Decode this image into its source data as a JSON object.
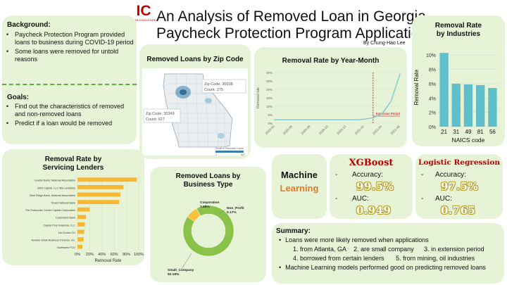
{
  "header": {
    "logo_big": "IC",
    "logo_small": "DATA CHALLENGE",
    "title_line1": "An Analysis of Removed Loan in Georgia",
    "title_line2": "Paycheck Protection Program Application",
    "author": "By Chung-Hao Lee"
  },
  "background": {
    "heading": "Background:",
    "items": [
      "Paycheck Protection Program provided loans to business during COVID-19 period",
      "Some loans were removed for untold reasons"
    ]
  },
  "goals": {
    "heading": "Goals:",
    "items": [
      "Find out the characteristics of removed and non-removed loans",
      "Predict if a loan would be removed"
    ]
  },
  "zip_map": {
    "title": "Removed Loans by Zip Code",
    "callout1": {
      "line1": "Zip Code: 30038",
      "line2": "Count: 275"
    },
    "callout2": {
      "line1": "Zip Code: 30349",
      "line2": "Count: 627"
    },
    "legend_title": "Count of Removed Loans",
    "legend_min": "1",
    "legend_max": "627"
  },
  "ml": {
    "title_line1": "Machine",
    "title_line2": "Learning",
    "xgb": {
      "name": "XGBoost",
      "acc_label": "Accuracy:",
      "acc": "99.5%",
      "auc_label": "AUC:",
      "auc": "0.949"
    },
    "lr": {
      "name": "Logistic Regression",
      "acc_label": "Accuracy:",
      "acc": "97.5%",
      "auc_label": "AUC:",
      "auc": "0.765"
    },
    "dash": "-"
  },
  "summary": {
    "heading": "Summary:",
    "bullet1": "Loans were more likely removed when applications",
    "row1": [
      "1. from Atlanta, GA",
      "2. are small company",
      "3. in extension period"
    ],
    "row2": [
      "4. borrowed from certain lenders",
      "5. from mining, oil industries"
    ],
    "bullet2": "Machine Learning models performed good on predicting removed loans"
  },
  "colors": {
    "panel": "#e6f3d6",
    "divider": "#5cad3a",
    "red": "#c00000",
    "teal": "#5fc0cc",
    "line": "#7ec8d0",
    "bar_orange": "#f7b733",
    "donut_green": "#8bc34a",
    "donut_yellow": "#f9c23c",
    "ml_orange": "#e07b24"
  },
  "chart_data": [
    {
      "type": "bar",
      "title": "Removal Rate by Industries",
      "categories": [
        "21",
        "31",
        "49",
        "81",
        "56"
      ],
      "values": [
        10.3,
        6.0,
        5.9,
        5.8,
        5.4
      ],
      "xlabel": "NAICS code",
      "ylabel": "Removal Rate",
      "ylim": [
        0,
        11
      ],
      "yticks": [
        0,
        2,
        4,
        6,
        8,
        10
      ],
      "ytick_labels": [
        "0%",
        "2%",
        "4%",
        "6%",
        "8%",
        "10%"
      ]
    },
    {
      "type": "line",
      "title": "Removal Rate by Year-Month",
      "categories": [
        "2020-04",
        "2020-05",
        "2020-06",
        "2020-07",
        "2020-08",
        "2020-09",
        "2020-10",
        "2020-11",
        "2020-12",
        "2021-01",
        "2021-02",
        "2021-03",
        "2021-04",
        "2021-05",
        "2021-06"
      ],
      "values": [
        2.0,
        2.0,
        2.0,
        2.0,
        2.0,
        2.0,
        2.0,
        2.0,
        2.0,
        2.0,
        2.3,
        3.2,
        5.5,
        13.0,
        29.0
      ],
      "tick_labels": [
        "2020-04",
        "2020-06",
        "2020-08",
        "2020-10",
        "2020-12",
        "2021-02",
        "2021-04",
        "2021-06"
      ],
      "ylabel": "Removal rate",
      "ylim": [
        0,
        30
      ],
      "yticks": [
        0,
        5,
        10,
        15,
        20,
        25,
        30
      ],
      "ytick_labels": [
        "0%",
        "5%",
        "10%",
        "15%",
        "20%",
        "25%",
        "30%"
      ],
      "annotation": "Extension Period",
      "annotation_at": "2021-03"
    },
    {
      "type": "bar",
      "orientation": "horizontal",
      "title": "Removal Rate by Servicing Lenders",
      "categories": [
        "Leader Bank, National Association",
        "BSD Capital, LLC dba Lendistry",
        "Blue Ridge Bank, National Association",
        "Texas National Bank",
        "The Enterprise Center Capital Corporation",
        "Customers Bank",
        "Capital Plus Financial, LLC",
        "1st Choice CU",
        "Newtek Small Business Finance, Inc.",
        "Northwest FCU"
      ],
      "values": [
        97,
        75,
        70,
        68,
        20,
        14,
        12,
        11,
        10,
        8
      ],
      "xlabel": "Removal Rate",
      "xlim": [
        0,
        100
      ],
      "xticks": [
        0,
        20,
        40,
        60,
        80,
        100
      ],
      "xtick_labels": [
        "0%",
        "20%",
        "40%",
        "60%",
        "80%",
        "100%"
      ]
    },
    {
      "type": "pie",
      "title": "Removed Loans by Business Type",
      "categories": [
        "Small_Company",
        "Corporation",
        "Non_Profit"
      ],
      "values": [
        92.18,
        7.65,
        0.17
      ],
      "labels": [
        "Small_Company\n92.18%",
        "Corporation\n7.65%",
        "Non_Profit\n0.17%"
      ],
      "value_labels": [
        "92.18%",
        "7.65%",
        "0.17%"
      ]
    }
  ]
}
